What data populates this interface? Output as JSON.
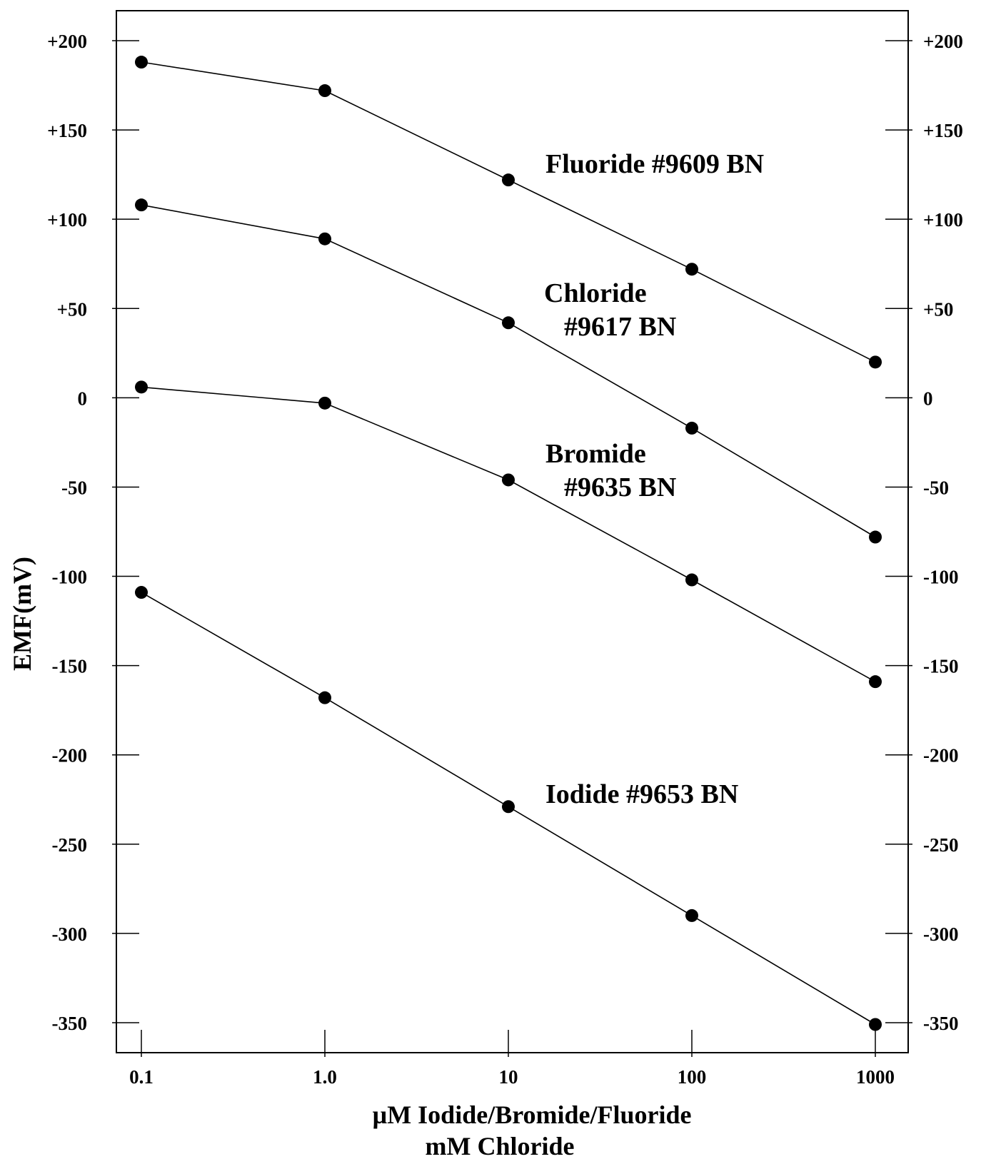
{
  "chart_data": {
    "type": "line",
    "title": "",
    "xlabel": [
      "µM Iodide/Bromide/Fluoride",
      "mM Chloride"
    ],
    "ylabel": "EMF(mV)",
    "x_scale": "log",
    "x": [
      0.1,
      1.0,
      10,
      100,
      1000
    ],
    "x_tick_labels": [
      "0.1",
      "1.0",
      "10",
      "100",
      "1000"
    ],
    "ylim": [
      -350,
      200
    ],
    "y_ticks": [
      200,
      150,
      100,
      50,
      0,
      -50,
      -100,
      -150,
      -200,
      -250,
      -300,
      -350
    ],
    "y_tick_labels": [
      "+200",
      "+150",
      "+100",
      "+50",
      "0",
      "-50",
      "-100",
      "-150",
      "-200",
      "-250",
      "-300",
      "-350"
    ],
    "mirror_y_axis_right": true,
    "grid": false,
    "legend": "none",
    "series": [
      {
        "name": [
          "Fluoride #9609 BN"
        ],
        "values": [
          188,
          172,
          122,
          72,
          20
        ]
      },
      {
        "name": [
          "Chloride",
          "#9617 BN"
        ],
        "values": [
          108,
          89,
          42,
          -17,
          -78
        ]
      },
      {
        "name": [
          "Bromide",
          "#9635 BN"
        ],
        "values": [
          6,
          -3,
          -46,
          -102,
          -159
        ]
      },
      {
        "name": [
          "Iodide #9653 BN"
        ],
        "values": [
          -109,
          -168,
          -229,
          -290,
          -351
        ]
      }
    ],
    "colors": {
      "line": "#000000",
      "marker": "#000000",
      "background": "#ffffff"
    }
  }
}
